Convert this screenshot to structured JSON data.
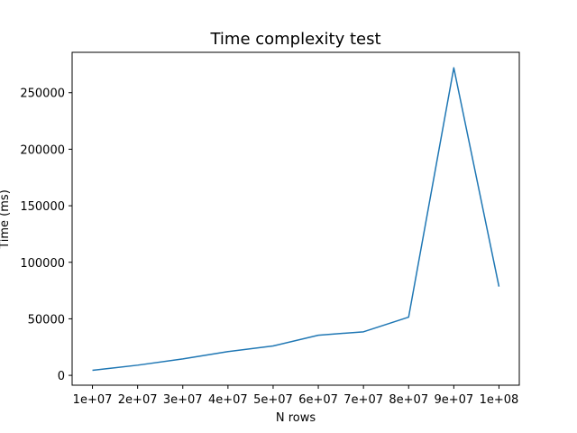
{
  "chart_data": {
    "type": "line",
    "title": "Time complexity test",
    "xlabel": "N rows",
    "ylabel": "Time (ms)",
    "x": [
      10000000,
      20000000,
      30000000,
      40000000,
      50000000,
      60000000,
      70000000,
      80000000,
      90000000,
      100000000
    ],
    "x_tick_labels": [
      "1e+07",
      "2e+07",
      "3e+07",
      "4e+07",
      "5e+07",
      "6e+07",
      "7e+07",
      "8e+07",
      "9e+07",
      "1e+08"
    ],
    "y_ticks": [
      0,
      50000,
      100000,
      150000,
      200000,
      250000
    ],
    "y_tick_labels": [
      "0",
      "50000",
      "100000",
      "150000",
      "200000",
      "250000"
    ],
    "series": [
      {
        "values": [
          4500,
          9000,
          14500,
          21000,
          26000,
          35500,
          38500,
          51500,
          272000,
          78500
        ],
        "color": "#1f77b4"
      }
    ],
    "xlim": [
      5500000,
      104500000
    ],
    "ylim": [
      -8700,
      285700
    ],
    "grid": false
  }
}
